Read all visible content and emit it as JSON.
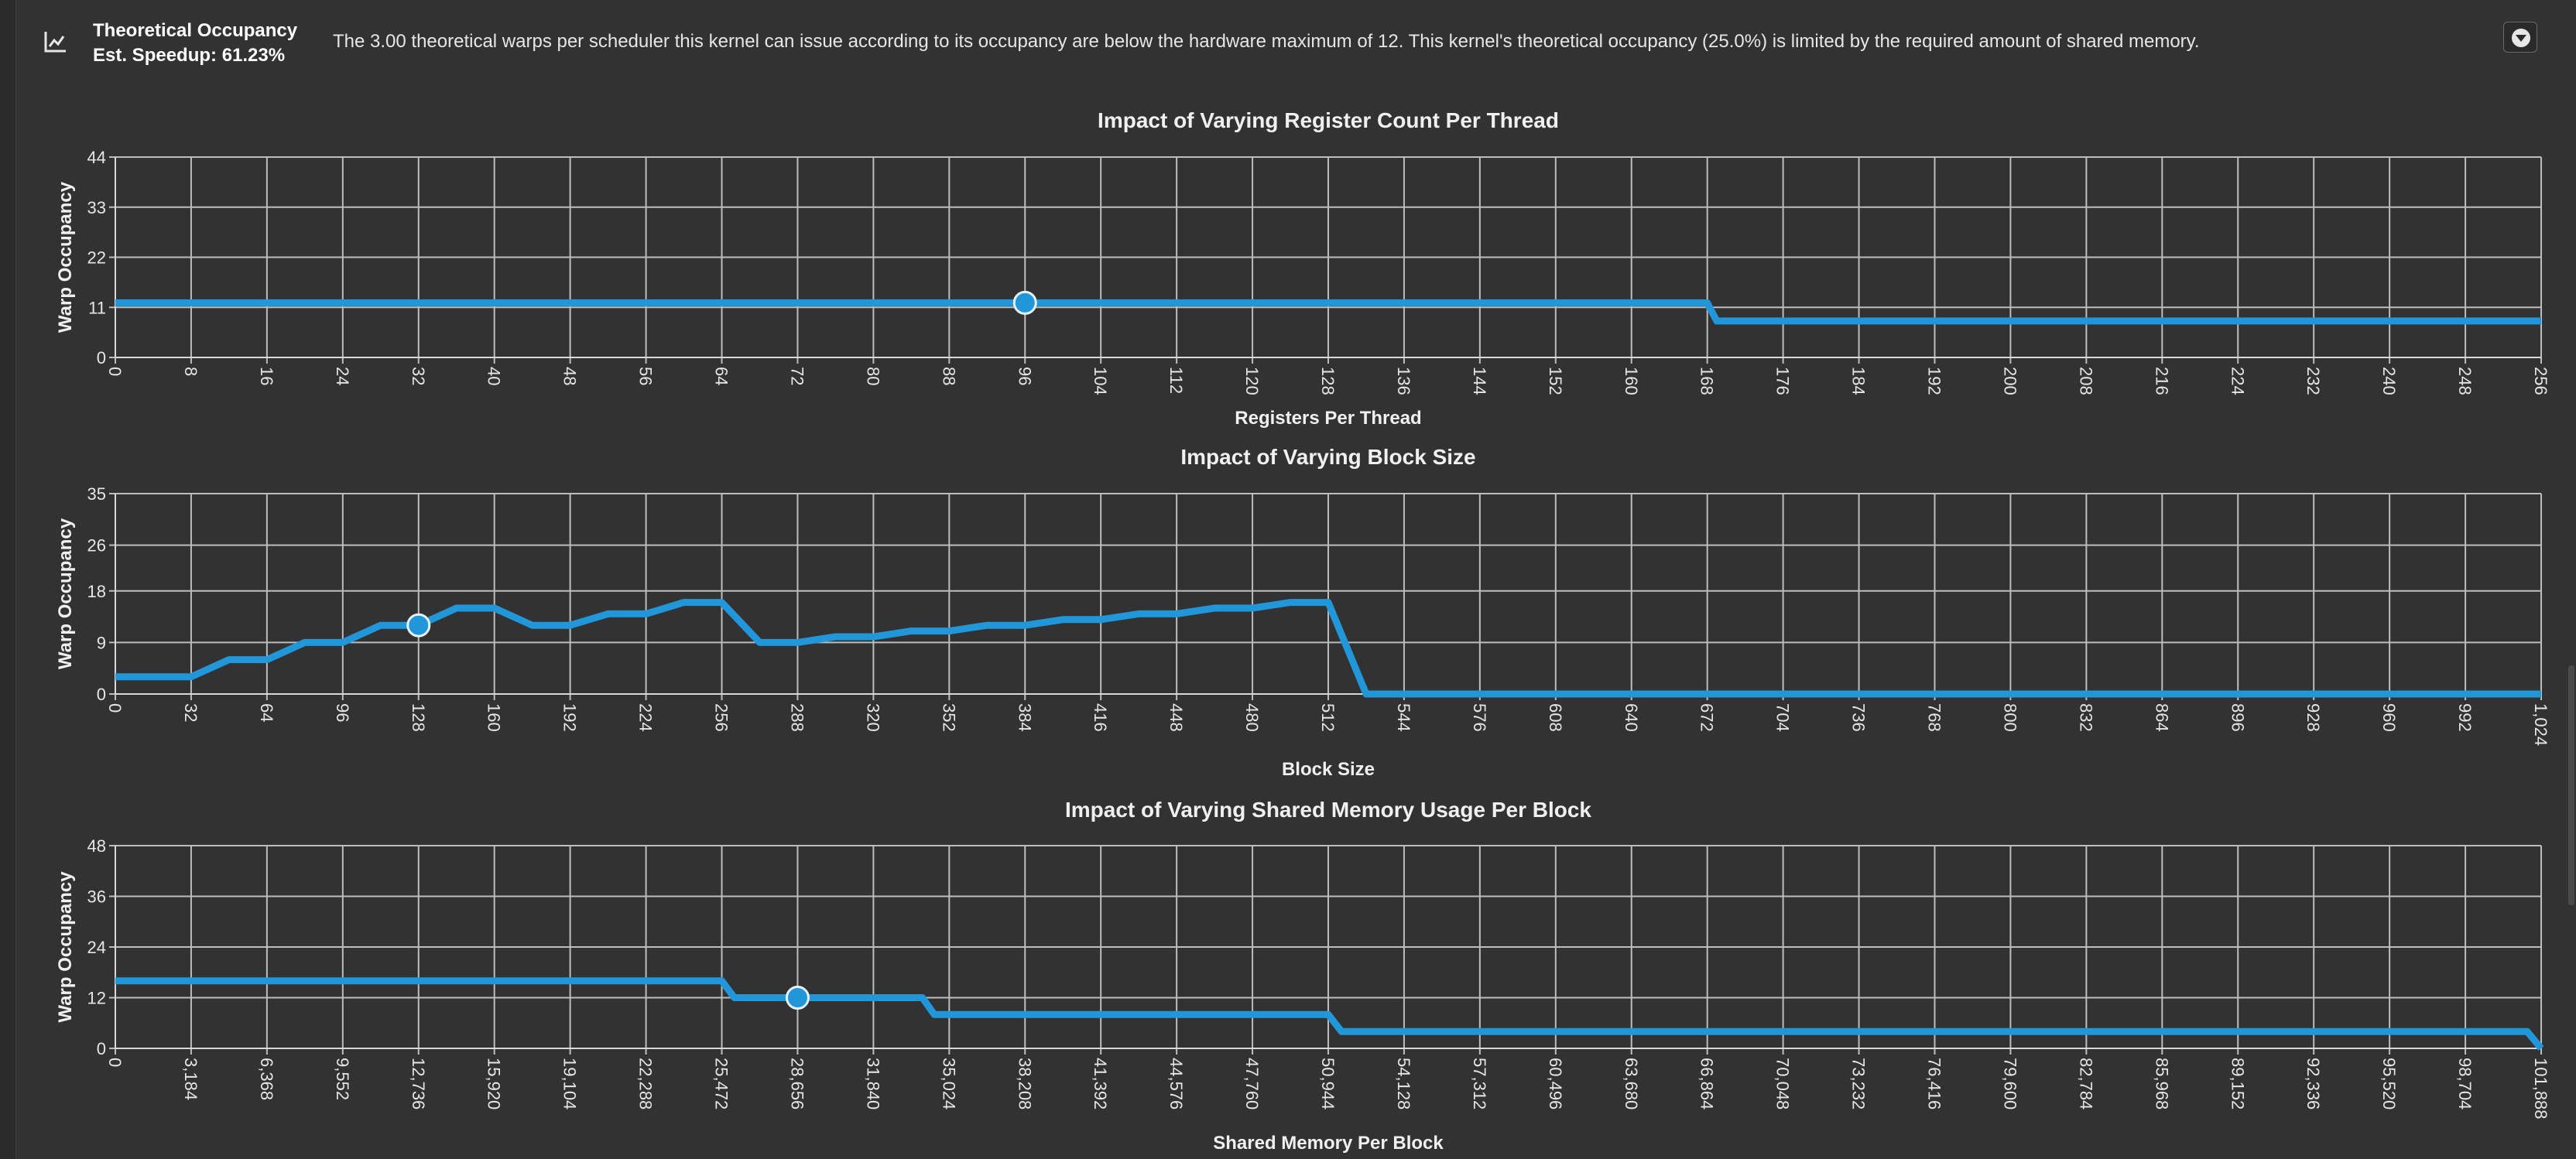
{
  "header": {
    "icon": "line-chart-icon",
    "title": "Theoretical Occupancy",
    "speedup": "Est. Speedup: 61.23%",
    "description": "The 3.00 theoretical warps per scheduler this kernel can issue according to its occupancy are below the hardware maximum of 12. This kernel's theoretical occupancy (25.0%) is limited by the required amount of shared memory.",
    "collapse_icon": "chevron-down-circle-icon"
  },
  "colors": {
    "series": "#2196d9",
    "background": "#323232",
    "grid": "#bdbdbd"
  },
  "chart_data": [
    {
      "type": "line",
      "title": "Impact of Varying Register Count Per Thread",
      "xlabel": "Registers Per Thread",
      "ylabel": "Warp Occupancy",
      "xlim": [
        0,
        256
      ],
      "ylim": [
        0,
        44
      ],
      "xticks": [
        0,
        8,
        16,
        24,
        32,
        40,
        48,
        56,
        64,
        72,
        80,
        88,
        96,
        104,
        112,
        120,
        128,
        136,
        144,
        152,
        160,
        168,
        176,
        184,
        192,
        200,
        208,
        216,
        224,
        232,
        240,
        248,
        256
      ],
      "xtick_labels": [
        "0",
        "8",
        "16",
        "24",
        "32",
        "40",
        "48",
        "56",
        "64",
        "72",
        "80",
        "88",
        "96",
        "104",
        "112",
        "120",
        "128",
        "136",
        "144",
        "152",
        "160",
        "168",
        "176",
        "184",
        "192",
        "200",
        "208",
        "216",
        "224",
        "232",
        "240",
        "248",
        "256"
      ],
      "yticks": [
        0,
        11,
        22,
        33,
        44
      ],
      "ytick_labels": [
        "0",
        "11",
        "22",
        "33",
        "44"
      ],
      "grid": true,
      "series": [
        {
          "x": [
            0,
            168,
            169,
            256
          ],
          "y": [
            12,
            12,
            8,
            8
          ]
        }
      ],
      "marker": {
        "x": 96,
        "y": 12
      }
    },
    {
      "type": "line",
      "title": "Impact of Varying Block Size",
      "xlabel": "Block Size",
      "ylabel": "Warp Occupancy",
      "xlim": [
        0,
        1024
      ],
      "ylim": [
        0,
        35
      ],
      "xticks": [
        0,
        32,
        64,
        96,
        128,
        160,
        192,
        224,
        256,
        288,
        320,
        352,
        384,
        416,
        448,
        480,
        512,
        544,
        576,
        608,
        640,
        672,
        704,
        736,
        768,
        800,
        832,
        864,
        896,
        928,
        960,
        992,
        1024
      ],
      "xtick_labels": [
        "0",
        "32",
        "64",
        "96",
        "128",
        "160",
        "192",
        "224",
        "256",
        "288",
        "320",
        "352",
        "384",
        "416",
        "448",
        "480",
        "512",
        "544",
        "576",
        "608",
        "640",
        "672",
        "704",
        "736",
        "768",
        "800",
        "832",
        "864",
        "896",
        "928",
        "960",
        "992",
        "1,024"
      ],
      "yticks": [
        0,
        9,
        18,
        26,
        35
      ],
      "ytick_labels": [
        "0",
        "9",
        "18",
        "26",
        "35"
      ],
      "grid": true,
      "series": [
        {
          "x": [
            0,
            32,
            48,
            64,
            80,
            96,
            112,
            128,
            144,
            160,
            176,
            192,
            208,
            224,
            240,
            256,
            272,
            288,
            304,
            320,
            336,
            352,
            368,
            384,
            400,
            416,
            432,
            448,
            464,
            480,
            496,
            512,
            528,
            544,
            1024
          ],
          "y": [
            3,
            3,
            6,
            6,
            9,
            9,
            12,
            12,
            15,
            15,
            12,
            12,
            14,
            14,
            16,
            16,
            9,
            9,
            10,
            10,
            11,
            11,
            12,
            12,
            13,
            13,
            14,
            14,
            15,
            15,
            16,
            16,
            0,
            0,
            0
          ]
        }
      ],
      "marker": {
        "x": 128,
        "y": 12
      }
    },
    {
      "type": "line",
      "title": "Impact of Varying Shared Memory Usage Per Block",
      "xlabel": "Shared Memory Per Block",
      "ylabel": "Warp Occupancy",
      "xlim": [
        0,
        101888
      ],
      "ylim": [
        0,
        48
      ],
      "xticks": [
        0,
        3184,
        6368,
        9552,
        12736,
        15920,
        19104,
        22288,
        25472,
        28656,
        31840,
        35024,
        38208,
        41392,
        44576,
        47760,
        50944,
        54128,
        57312,
        60496,
        63680,
        66864,
        70048,
        73232,
        76416,
        79600,
        82784,
        85968,
        89152,
        92336,
        95520,
        98704,
        101888
      ],
      "xtick_labels": [
        "0",
        "3,184",
        "6,368",
        "9,552",
        "12,736",
        "15,920",
        "19,104",
        "22,288",
        "25,472",
        "28,656",
        "31,840",
        "35,024",
        "38,208",
        "41,392",
        "44,576",
        "47,760",
        "50,944",
        "54,128",
        "57,312",
        "60,496",
        "63,680",
        "66,864",
        "70,048",
        "73,232",
        "76,416",
        "79,600",
        "82,784",
        "85,968",
        "89,152",
        "92,336",
        "95,520",
        "98,704",
        "101,888"
      ],
      "yticks": [
        0,
        12,
        24,
        36,
        48
      ],
      "ytick_labels": [
        "0",
        "12",
        "24",
        "36",
        "48"
      ],
      "grid": true,
      "series": [
        {
          "x": [
            0,
            25472,
            26000,
            33900,
            34400,
            50944,
            51500,
            101300,
            101888
          ],
          "y": [
            16,
            16,
            12,
            12,
            8,
            8,
            4,
            4,
            0
          ]
        }
      ],
      "marker": {
        "x": 28656,
        "y": 12
      }
    }
  ]
}
